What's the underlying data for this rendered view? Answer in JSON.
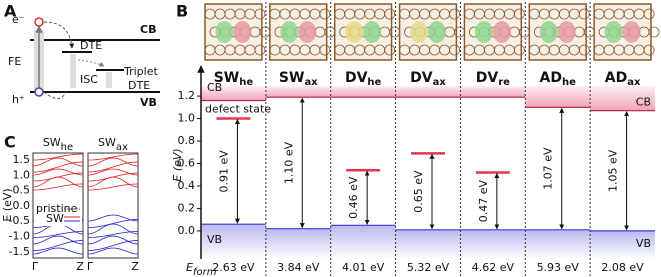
{
  "panel_a": {
    "label": "A",
    "electron": "e⁻",
    "cb": "CB",
    "dte": "DTE",
    "fe": "FE",
    "isc": "ISC",
    "triplet": "Triplet",
    "triplet_dte": "DTE",
    "hole": "h⁺",
    "vb": "VB"
  },
  "panel_c": {
    "label": "C",
    "titles": [
      {
        "main": "SW",
        "sub": "he"
      },
      {
        "main": "SW",
        "sub": "ax"
      }
    ],
    "yticks": [
      "1.5",
      "1.0",
      "0.5",
      "0.0",
      "-0.5",
      "-1.0",
      "-1.5"
    ],
    "ylabel": "E (eV)",
    "legend": [
      "pristine",
      "SW"
    ],
    "xticks": [
      "Γ",
      "Z",
      "Γ",
      "Z"
    ]
  },
  "chart_data": {
    "type": "level",
    "panel_label": "B",
    "ylabel": "E (eV)",
    "ylim": [
      -0.25,
      1.45
    ],
    "yticks": [
      {
        "value": 0,
        "label": "0.0"
      },
      0.2,
      0.4,
      0.6,
      0.8,
      {
        "value": 1,
        "label": "1.0"
      },
      1.2
    ],
    "categories": [
      "SW",
      "SW",
      "DV",
      "DV",
      "DV",
      "AD",
      "AD"
    ],
    "category_subscripts": [
      "he",
      "ax",
      "he",
      "ax",
      "re",
      "he",
      "ax"
    ],
    "series": [
      {
        "name": "VB",
        "color": "#3a3ad0",
        "values": [
          0.06,
          0.02,
          0.05,
          0.01,
          0.01,
          0.01,
          0.0
        ]
      },
      {
        "name": "CB",
        "color": "#b0203a",
        "values": [
          1.16,
          1.19,
          1.19,
          1.19,
          1.19,
          1.1,
          1.07
        ]
      },
      {
        "name": "defect state",
        "color": "#e8344c",
        "values": [
          1.0,
          null,
          0.54,
          0.69,
          0.52,
          null,
          null
        ]
      }
    ],
    "gap_labels": [
      "0.91 eV",
      "1.10 eV",
      "0.46 eV",
      "0.65 eV",
      "0.47 eV",
      "1.07 eV",
      "1.05 eV"
    ],
    "eform_label": {
      "main": "E",
      "sub": "form"
    },
    "formation_energies": [
      "2.63 eV",
      "3.84 eV",
      "4.01 eV",
      "5.32 eV",
      "4.62 eV",
      "5.93 eV",
      "2.08 eV"
    ]
  }
}
